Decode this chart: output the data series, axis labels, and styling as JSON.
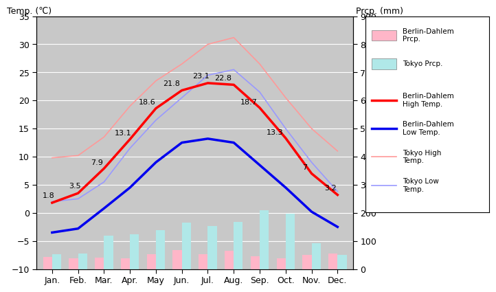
{
  "months": [
    "Jan.",
    "Feb.",
    "Mar.",
    "Apr.",
    "May",
    "Jun.",
    "Jul.",
    "Aug.",
    "Sep.",
    "Oct.",
    "Nov.",
    "Dec."
  ],
  "berlin_high": [
    1.8,
    3.5,
    7.9,
    13.1,
    18.6,
    21.8,
    23.1,
    22.8,
    18.7,
    13.3,
    7.0,
    3.2
  ],
  "berlin_low": [
    -3.5,
    -2.8,
    0.8,
    4.5,
    9.0,
    12.5,
    13.2,
    12.5,
    8.5,
    4.5,
    0.2,
    -2.5
  ],
  "tokyo_high": [
    9.8,
    10.2,
    13.5,
    19.0,
    23.5,
    26.5,
    30.0,
    31.2,
    26.5,
    20.5,
    15.0,
    11.0
  ],
  "tokyo_low": [
    2.0,
    2.5,
    5.5,
    11.5,
    16.5,
    20.5,
    24.5,
    25.5,
    21.5,
    15.0,
    9.0,
    3.8
  ],
  "berlin_prcp_bars": [
    42,
    37,
    40,
    37,
    52,
    68,
    53,
    66,
    45,
    37,
    50,
    55
  ],
  "tokyo_prcp_bars": [
    52,
    56,
    118,
    124,
    138,
    165,
    154,
    168,
    210,
    197,
    93,
    51
  ],
  "berlin_high_color": "#FF0000",
  "berlin_low_color": "#0000EE",
  "tokyo_high_color": "#FF9999",
  "tokyo_low_color": "#9999FF",
  "berlin_prcp_color": "#FFB6C8",
  "tokyo_prcp_color": "#B0E8E8",
  "temp_ylim": [
    -10,
    35
  ],
  "prcp_ylim": [
    0,
    900
  ],
  "temp_yticks": [
    -10,
    -5,
    0,
    5,
    10,
    15,
    20,
    25,
    30,
    35
  ],
  "prcp_yticks": [
    0,
    100,
    200,
    300,
    400,
    500,
    600,
    700,
    800,
    900
  ],
  "background_color": "#C8C8C8",
  "label_data": [
    [
      0,
      1.8,
      "1.8",
      -10,
      5
    ],
    [
      1,
      3.5,
      "3.5",
      -10,
      5
    ],
    [
      2,
      7.9,
      "7.9",
      -14,
      4
    ],
    [
      3,
      13.1,
      "13.1",
      -16,
      4
    ],
    [
      4,
      18.6,
      "18.6",
      -18,
      4
    ],
    [
      5,
      21.8,
      "21.8",
      -20,
      5
    ],
    [
      6,
      23.1,
      "23.1",
      -16,
      5
    ],
    [
      7,
      22.8,
      "22.8",
      -20,
      5
    ],
    [
      8,
      18.7,
      "18.7",
      -20,
      4
    ],
    [
      9,
      13.3,
      "13.3",
      -20,
      4
    ],
    [
      10,
      7.0,
      "7",
      -10,
      4
    ],
    [
      11,
      3.2,
      "3.2",
      -14,
      5
    ]
  ]
}
